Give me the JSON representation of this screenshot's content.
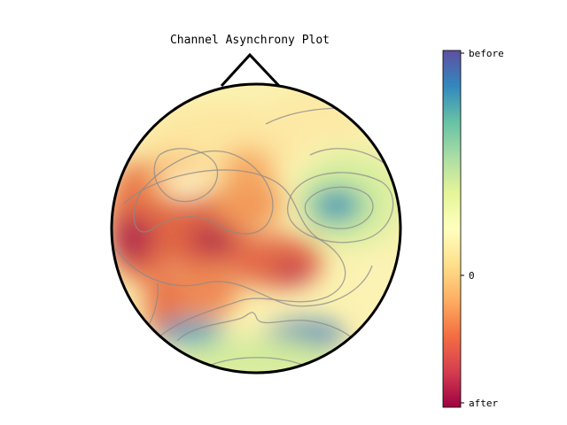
{
  "chart_data": {
    "type": "heatmap",
    "title": "Channel Asynchrony Plot",
    "colormap": "Spectral",
    "colorbar": {
      "tick_labels": [
        "before",
        "0",
        "after"
      ],
      "ticks": [
        1,
        0,
        -1
      ],
      "colors_top_to_bottom": [
        "#5e4fa2",
        "#3288bd",
        "#66c2a5",
        "#abdda4",
        "#e6f598",
        "#ffffbf",
        "#fee08b",
        "#fdae61",
        "#f46d43",
        "#d53e4f",
        "#9e0142"
      ]
    },
    "contour_lines": true,
    "head_outline": true
  }
}
